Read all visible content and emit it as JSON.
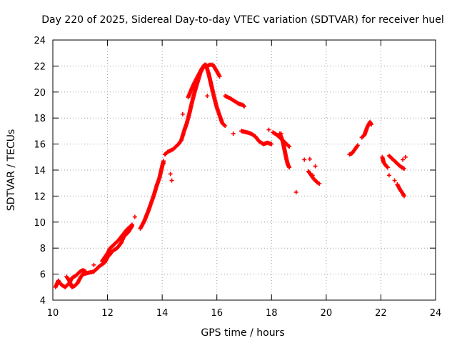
{
  "chart_data": {
    "type": "scatter",
    "title": "Day 220 of 2025, Sidereal Day-to-day VTEC variation (SDTVAR) for receiver huel",
    "xlabel": "GPS time / hours",
    "ylabel": "SDTVAR / TECUs",
    "xlim": [
      10,
      24
    ],
    "ylim": [
      4,
      24
    ],
    "xticks": [
      "10",
      "12",
      "14",
      "16",
      "18",
      "20",
      "22",
      "24"
    ],
    "yticks": [
      "4",
      "6",
      "8",
      "10",
      "12",
      "14",
      "16",
      "18",
      "20",
      "22",
      "24"
    ],
    "grid": true,
    "marker": "plus",
    "series_color": "#ff0000",
    "segments": [
      [
        [
          10.1,
          5.0
        ],
        [
          10.2,
          5.5
        ],
        [
          10.3,
          5.2
        ],
        [
          10.45,
          5.0
        ],
        [
          10.6,
          5.3
        ],
        [
          10.7,
          5.7
        ],
        [
          10.85,
          5.9
        ],
        [
          11.0,
          6.2
        ],
        [
          11.1,
          6.3
        ],
        [
          11.2,
          6.2
        ]
      ],
      [
        [
          10.5,
          5.8
        ],
        [
          10.6,
          5.5
        ],
        [
          10.7,
          5.0
        ],
        [
          10.8,
          5.1
        ],
        [
          10.9,
          5.3
        ],
        [
          11.0,
          5.7
        ],
        [
          11.1,
          6.0
        ],
        [
          11.3,
          6.1
        ],
        [
          11.5,
          6.2
        ],
        [
          11.7,
          6.6
        ],
        [
          11.9,
          6.9
        ],
        [
          12.0,
          7.3
        ],
        [
          12.2,
          7.8
        ],
        [
          12.35,
          8.0
        ],
        [
          12.5,
          8.4
        ],
        [
          12.6,
          8.9
        ],
        [
          12.75,
          9.2
        ],
        [
          12.9,
          9.7
        ]
      ],
      [
        [
          11.8,
          7.0
        ],
        [
          12.0,
          7.6
        ],
        [
          12.1,
          8.0
        ],
        [
          12.25,
          8.3
        ],
        [
          12.4,
          8.6
        ],
        [
          12.55,
          9.0
        ],
        [
          12.7,
          9.4
        ],
        [
          12.9,
          9.8
        ]
      ],
      [
        [
          13.2,
          9.5
        ],
        [
          13.35,
          10.1
        ],
        [
          13.5,
          10.9
        ],
        [
          13.6,
          11.5
        ],
        [
          13.7,
          12.1
        ],
        [
          13.8,
          12.8
        ],
        [
          13.9,
          13.4
        ],
        [
          14.0,
          14.3
        ],
        [
          14.05,
          14.7
        ]
      ],
      [
        [
          14.1,
          15.2
        ],
        [
          14.2,
          15.4
        ],
        [
          14.4,
          15.6
        ],
        [
          14.5,
          15.8
        ],
        [
          14.6,
          16.0
        ],
        [
          14.7,
          16.3
        ],
        [
          14.8,
          17.0
        ],
        [
          14.9,
          17.6
        ],
        [
          15.0,
          18.4
        ],
        [
          15.1,
          19.3
        ],
        [
          15.2,
          20.1
        ],
        [
          15.3,
          20.8
        ],
        [
          15.4,
          21.5
        ],
        [
          15.5,
          21.9
        ],
        [
          15.6,
          22.1
        ],
        [
          15.7,
          21.4
        ],
        [
          15.8,
          20.5
        ],
        [
          15.9,
          19.6
        ],
        [
          16.0,
          18.8
        ],
        [
          16.1,
          18.2
        ],
        [
          16.2,
          17.6
        ],
        [
          16.3,
          17.4
        ]
      ],
      [
        [
          14.95,
          19.6
        ],
        [
          15.05,
          20.1
        ],
        [
          15.15,
          20.6
        ],
        [
          15.25,
          21.0
        ],
        [
          15.35,
          21.4
        ],
        [
          15.45,
          21.8
        ],
        [
          15.55,
          22.1
        ],
        [
          15.65,
          22.0
        ],
        [
          15.75,
          22.1
        ],
        [
          15.85,
          22.1
        ],
        [
          16.0,
          21.6
        ],
        [
          16.1,
          21.2
        ]
      ],
      [
        [
          16.3,
          19.7
        ],
        [
          16.5,
          19.5
        ],
        [
          16.65,
          19.3
        ],
        [
          16.8,
          19.1
        ],
        [
          16.95,
          19.0
        ],
        [
          17.0,
          18.9
        ]
      ],
      [
        [
          16.9,
          17.0
        ],
        [
          17.1,
          16.9
        ],
        [
          17.25,
          16.8
        ],
        [
          17.4,
          16.6
        ],
        [
          17.55,
          16.2
        ],
        [
          17.7,
          16.0
        ],
        [
          17.85,
          16.1
        ],
        [
          18.0,
          16.0
        ]
      ],
      [
        [
          18.05,
          16.9
        ],
        [
          18.2,
          16.7
        ],
        [
          18.3,
          16.5
        ],
        [
          18.45,
          16.2
        ],
        [
          18.55,
          16.0
        ],
        [
          18.65,
          15.8
        ]
      ],
      [
        [
          18.3,
          16.8
        ],
        [
          18.4,
          16.3
        ],
        [
          18.45,
          15.8
        ],
        [
          18.5,
          15.3
        ],
        [
          18.55,
          14.8
        ],
        [
          18.6,
          14.4
        ],
        [
          18.65,
          14.2
        ]
      ],
      [
        [
          19.35,
          13.9
        ],
        [
          19.45,
          13.6
        ],
        [
          19.55,
          13.3
        ],
        [
          19.7,
          13.0
        ],
        [
          19.75,
          12.95
        ]
      ],
      [
        [
          20.85,
          15.2
        ],
        [
          20.95,
          15.3
        ],
        [
          21.05,
          15.6
        ],
        [
          21.15,
          15.9
        ]
      ],
      [
        [
          21.3,
          16.5
        ],
        [
          21.4,
          16.7
        ],
        [
          21.5,
          17.3
        ],
        [
          21.6,
          17.7
        ],
        [
          21.65,
          17.5
        ]
      ],
      [
        [
          22.05,
          15.0
        ],
        [
          22.1,
          14.6
        ],
        [
          22.2,
          14.3
        ],
        [
          22.25,
          14.2
        ]
      ],
      [
        [
          22.3,
          15.1
        ],
        [
          22.4,
          14.9
        ],
        [
          22.5,
          14.7
        ],
        [
          22.6,
          14.5
        ],
        [
          22.7,
          14.3
        ],
        [
          22.85,
          14.1
        ]
      ],
      [
        [
          22.6,
          12.9
        ],
        [
          22.7,
          12.5
        ],
        [
          22.8,
          12.2
        ],
        [
          22.85,
          12.0
        ]
      ]
    ],
    "points": [
      [
        11.5,
        6.7
      ],
      [
        13.0,
        10.4
      ],
      [
        14.35,
        13.2
      ],
      [
        14.3,
        13.7
      ],
      [
        14.75,
        18.3
      ],
      [
        15.65,
        19.7
      ],
      [
        16.6,
        16.8
      ],
      [
        17.9,
        17.1
      ],
      [
        18.35,
        16.8
      ],
      [
        18.9,
        12.3
      ],
      [
        19.2,
        14.8
      ],
      [
        19.4,
        14.85
      ],
      [
        19.6,
        14.3
      ],
      [
        19.5,
        13.6
      ],
      [
        22.3,
        13.6
      ],
      [
        22.5,
        13.2
      ],
      [
        22.9,
        15.0
      ],
      [
        22.8,
        14.8
      ],
      [
        14.05,
        14.5
      ],
      [
        16.9,
        17.0
      ]
    ]
  }
}
